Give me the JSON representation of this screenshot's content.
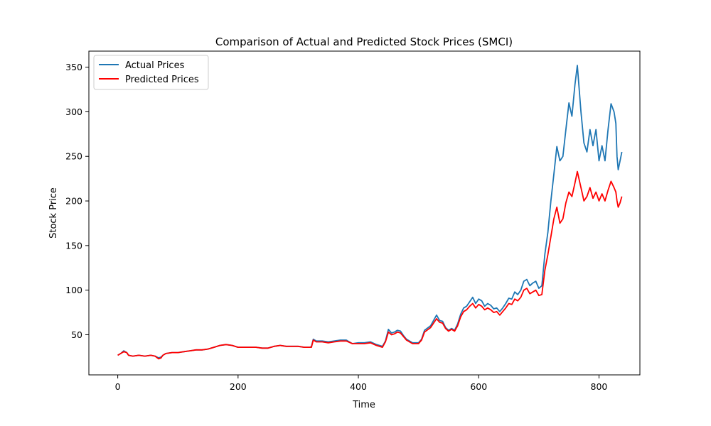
{
  "chart_data": {
    "type": "line",
    "title": "Comparison of Actual and Predicted Stock Prices (SMCI)",
    "xlabel": "Time",
    "ylabel": "Stock Price",
    "xlim": [
      -48,
      868
    ],
    "ylim": [
      5,
      368
    ],
    "xticks": [
      0,
      200,
      400,
      600,
      800
    ],
    "yticks": [
      50,
      100,
      150,
      200,
      250,
      300,
      350
    ],
    "grid": false,
    "legend_position": "top-left",
    "colors": {
      "actual": "#1f77b4",
      "predicted": "#ff0000"
    },
    "series": [
      {
        "name": "Actual Prices",
        "key": "actual",
        "points": [
          [
            0,
            27
          ],
          [
            5,
            29
          ],
          [
            10,
            32
          ],
          [
            15,
            30
          ],
          [
            18,
            27
          ],
          [
            25,
            26
          ],
          [
            35,
            27
          ],
          [
            45,
            26
          ],
          [
            55,
            27
          ],
          [
            62,
            26
          ],
          [
            68,
            24
          ],
          [
            72,
            25
          ],
          [
            75,
            27
          ],
          [
            80,
            29
          ],
          [
            90,
            30
          ],
          [
            100,
            30
          ],
          [
            110,
            31
          ],
          [
            120,
            32
          ],
          [
            130,
            33
          ],
          [
            140,
            33
          ],
          [
            150,
            34
          ],
          [
            160,
            36
          ],
          [
            170,
            38
          ],
          [
            180,
            39
          ],
          [
            190,
            38
          ],
          [
            200,
            36
          ],
          [
            210,
            36
          ],
          [
            220,
            36
          ],
          [
            230,
            36
          ],
          [
            240,
            35
          ],
          [
            250,
            35
          ],
          [
            260,
            37
          ],
          [
            270,
            38
          ],
          [
            280,
            37
          ],
          [
            290,
            37
          ],
          [
            300,
            37
          ],
          [
            310,
            36
          ],
          [
            320,
            36
          ],
          [
            322,
            37
          ],
          [
            325,
            45
          ],
          [
            330,
            43
          ],
          [
            340,
            43
          ],
          [
            350,
            42
          ],
          [
            360,
            43
          ],
          [
            370,
            44
          ],
          [
            380,
            44
          ],
          [
            390,
            40
          ],
          [
            400,
            41
          ],
          [
            410,
            41
          ],
          [
            420,
            42
          ],
          [
            430,
            39
          ],
          [
            440,
            37
          ],
          [
            445,
            43
          ],
          [
            450,
            56
          ],
          [
            455,
            52
          ],
          [
            460,
            53
          ],
          [
            465,
            55
          ],
          [
            470,
            54
          ],
          [
            475,
            49
          ],
          [
            480,
            45
          ],
          [
            490,
            41
          ],
          [
            500,
            41
          ],
          [
            505,
            45
          ],
          [
            510,
            55
          ],
          [
            520,
            60
          ],
          [
            530,
            72
          ],
          [
            535,
            66
          ],
          [
            540,
            65
          ],
          [
            545,
            58
          ],
          [
            550,
            55
          ],
          [
            555,
            57
          ],
          [
            560,
            55
          ],
          [
            565,
            62
          ],
          [
            570,
            73
          ],
          [
            575,
            80
          ],
          [
            580,
            82
          ],
          [
            585,
            87
          ],
          [
            590,
            92
          ],
          [
            595,
            85
          ],
          [
            600,
            90
          ],
          [
            605,
            88
          ],
          [
            610,
            82
          ],
          [
            615,
            85
          ],
          [
            620,
            83
          ],
          [
            625,
            79
          ],
          [
            630,
            80
          ],
          [
            635,
            76
          ],
          [
            640,
            80
          ],
          [
            645,
            85
          ],
          [
            650,
            91
          ],
          [
            655,
            90
          ],
          [
            660,
            98
          ],
          [
            665,
            95
          ],
          [
            670,
            100
          ],
          [
            675,
            110
          ],
          [
            680,
            112
          ],
          [
            685,
            105
          ],
          [
            690,
            108
          ],
          [
            695,
            110
          ],
          [
            700,
            102
          ],
          [
            705,
            105
          ],
          [
            710,
            140
          ],
          [
            715,
            165
          ],
          [
            720,
            200
          ],
          [
            725,
            230
          ],
          [
            730,
            261
          ],
          [
            735,
            245
          ],
          [
            740,
            250
          ],
          [
            745,
            280
          ],
          [
            750,
            310
          ],
          [
            755,
            295
          ],
          [
            760,
            330
          ],
          [
            764,
            352
          ],
          [
            770,
            300
          ],
          [
            775,
            265
          ],
          [
            780,
            255
          ],
          [
            785,
            280
          ],
          [
            790,
            262
          ],
          [
            795,
            280
          ],
          [
            800,
            245
          ],
          [
            805,
            262
          ],
          [
            810,
            245
          ],
          [
            815,
            280
          ],
          [
            820,
            309
          ],
          [
            825,
            300
          ],
          [
            828,
            287
          ],
          [
            830,
            250
          ],
          [
            832,
            235
          ],
          [
            835,
            245
          ],
          [
            838,
            255
          ]
        ]
      },
      {
        "name": "Predicted Prices",
        "key": "predicted",
        "points": [
          [
            0,
            27
          ],
          [
            5,
            29
          ],
          [
            10,
            31
          ],
          [
            15,
            30
          ],
          [
            18,
            27
          ],
          [
            25,
            26
          ],
          [
            35,
            27
          ],
          [
            45,
            26
          ],
          [
            55,
            27
          ],
          [
            62,
            26
          ],
          [
            68,
            23
          ],
          [
            72,
            24
          ],
          [
            75,
            27
          ],
          [
            80,
            29
          ],
          [
            90,
            30
          ],
          [
            100,
            30
          ],
          [
            110,
            31
          ],
          [
            120,
            32
          ],
          [
            130,
            33
          ],
          [
            140,
            33
          ],
          [
            150,
            34
          ],
          [
            160,
            36
          ],
          [
            170,
            38
          ],
          [
            180,
            39
          ],
          [
            190,
            38
          ],
          [
            200,
            36
          ],
          [
            210,
            36
          ],
          [
            220,
            36
          ],
          [
            230,
            36
          ],
          [
            240,
            35
          ],
          [
            250,
            35
          ],
          [
            260,
            37
          ],
          [
            270,
            38
          ],
          [
            280,
            37
          ],
          [
            290,
            37
          ],
          [
            300,
            37
          ],
          [
            310,
            36
          ],
          [
            320,
            36
          ],
          [
            322,
            36
          ],
          [
            325,
            44
          ],
          [
            330,
            42
          ],
          [
            340,
            42
          ],
          [
            350,
            41
          ],
          [
            360,
            42
          ],
          [
            370,
            43
          ],
          [
            380,
            43
          ],
          [
            390,
            40
          ],
          [
            400,
            40
          ],
          [
            410,
            40
          ],
          [
            420,
            41
          ],
          [
            430,
            38
          ],
          [
            440,
            36
          ],
          [
            445,
            42
          ],
          [
            450,
            53
          ],
          [
            455,
            50
          ],
          [
            460,
            51
          ],
          [
            465,
            53
          ],
          [
            470,
            52
          ],
          [
            475,
            48
          ],
          [
            480,
            44
          ],
          [
            490,
            40
          ],
          [
            500,
            40
          ],
          [
            505,
            44
          ],
          [
            510,
            53
          ],
          [
            520,
            58
          ],
          [
            530,
            68
          ],
          [
            535,
            64
          ],
          [
            540,
            63
          ],
          [
            545,
            57
          ],
          [
            550,
            54
          ],
          [
            555,
            56
          ],
          [
            560,
            54
          ],
          [
            565,
            60
          ],
          [
            570,
            70
          ],
          [
            575,
            76
          ],
          [
            580,
            78
          ],
          [
            585,
            82
          ],
          [
            590,
            85
          ],
          [
            595,
            80
          ],
          [
            600,
            84
          ],
          [
            605,
            82
          ],
          [
            610,
            78
          ],
          [
            615,
            80
          ],
          [
            620,
            78
          ],
          [
            625,
            75
          ],
          [
            630,
            76
          ],
          [
            635,
            72
          ],
          [
            640,
            76
          ],
          [
            645,
            80
          ],
          [
            650,
            85
          ],
          [
            655,
            84
          ],
          [
            660,
            90
          ],
          [
            665,
            88
          ],
          [
            670,
            92
          ],
          [
            675,
            100
          ],
          [
            680,
            102
          ],
          [
            685,
            96
          ],
          [
            690,
            98
          ],
          [
            695,
            100
          ],
          [
            700,
            94
          ],
          [
            705,
            95
          ],
          [
            710,
            122
          ],
          [
            715,
            140
          ],
          [
            720,
            160
          ],
          [
            725,
            180
          ],
          [
            730,
            193
          ],
          [
            735,
            175
          ],
          [
            740,
            180
          ],
          [
            745,
            198
          ],
          [
            750,
            210
          ],
          [
            755,
            205
          ],
          [
            760,
            220
          ],
          [
            764,
            233
          ],
          [
            770,
            215
          ],
          [
            775,
            200
          ],
          [
            780,
            205
          ],
          [
            785,
            215
          ],
          [
            790,
            203
          ],
          [
            795,
            210
          ],
          [
            800,
            200
          ],
          [
            805,
            208
          ],
          [
            810,
            200
          ],
          [
            815,
            212
          ],
          [
            820,
            222
          ],
          [
            825,
            215
          ],
          [
            828,
            210
          ],
          [
            830,
            200
          ],
          [
            832,
            193
          ],
          [
            835,
            198
          ],
          [
            838,
            205
          ]
        ]
      }
    ]
  }
}
